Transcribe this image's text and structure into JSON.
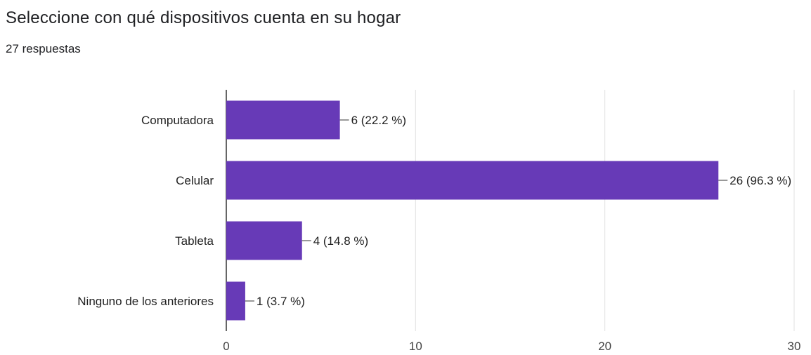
{
  "header": {
    "title": "Seleccione con qué dispositivos cuenta en su hogar",
    "subtitle": "27 respuestas"
  },
  "chart_data": {
    "type": "bar",
    "orientation": "horizontal",
    "categories": [
      "Computadora",
      "Celular",
      "Tableta",
      "Ninguno de los anteriores"
    ],
    "values": [
      6,
      26,
      4,
      1
    ],
    "value_labels": [
      "6 (22.2 %)",
      "26 (96.3 %)",
      "4 (14.8 %)",
      "1 (3.7 %)"
    ],
    "xlim": [
      0,
      30
    ],
    "xticks": [
      0,
      10,
      20,
      30
    ],
    "grid": true,
    "legend": "none",
    "bar_color": "#673ab7"
  }
}
